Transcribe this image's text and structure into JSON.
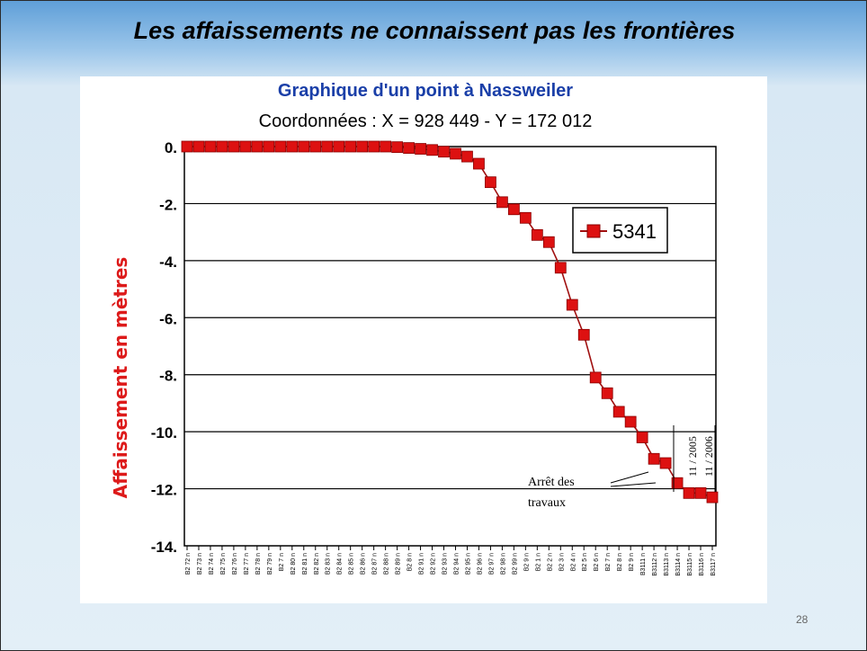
{
  "slide": {
    "title": "Les affaissements ne connaissent pas les frontières",
    "page_number": "28"
  },
  "chart_data": {
    "type": "line",
    "title": "Graphique d'un point à Nassweiler",
    "subtitle": "Coordonnées : X = 928 449 - Y = 172 012",
    "xlabel": "",
    "ylabel": "Affaissement en mètres",
    "ylim": [
      -14,
      0
    ],
    "yticks": [
      0,
      -2,
      -4,
      -6,
      -8,
      -10,
      -12,
      -14
    ],
    "ytick_labels": [
      "0.",
      "-2.",
      "-4.",
      "-6.",
      "-8.",
      "-10.",
      "-12.",
      "-14."
    ],
    "grid": true,
    "legend": "top-right",
    "categories": [
      "B2 72 n",
      "B2 73 n",
      "B2 74 n",
      "B2 75 n",
      "B2 76 n",
      "B2 77 n",
      "B2 78 n",
      "B2 79 n",
      "B2 7 n",
      "B2 80 n",
      "B2 81 n",
      "B2 82 n",
      "B2 83 n",
      "B2 84 n",
      "B2 85 n",
      "B2 86 n",
      "B2 87 n",
      "B2 88 n",
      "B2 89 n",
      "B2 8 n",
      "B2 91 n",
      "B2 92 n",
      "B2 93 n",
      "B2 94 n",
      "B2 95 n",
      "B2 96 n",
      "B2 97 n",
      "B2 98 n",
      "B2 99 n",
      "B2 9 n",
      "B2 1 n",
      "B2 2 n",
      "B2 3 n",
      "B2 4 n",
      "B2 5 n",
      "B2 6 n",
      "B2 7 n",
      "B2 8 n",
      "B2 9 n",
      "B3111 n",
      "B3112 n",
      "B3113 n",
      "B3114 n",
      "B3115 n",
      "B3116 n",
      "B3117 n"
    ],
    "series": [
      {
        "name": "5341",
        "color": "#dd1111",
        "values": [
          0,
          0,
          0,
          0,
          0,
          0,
          0,
          0,
          0,
          0,
          0,
          0,
          0,
          0,
          0,
          0,
          0,
          0,
          -0.02,
          -0.05,
          -0.08,
          -0.12,
          -0.18,
          -0.25,
          -0.35,
          -0.6,
          -1.25,
          -1.95,
          -2.2,
          -2.5,
          -3.1,
          -3.35,
          -4.25,
          -5.55,
          -6.6,
          -8.1,
          -8.65,
          -9.3,
          -9.65,
          -10.2,
          -10.95,
          -11.1,
          -11.8,
          -12.15,
          -12.15,
          -12.3
        ]
      }
    ],
    "annotations": {
      "stop_text_line1": "Arrêt des",
      "stop_text_line2": "travaux",
      "date_1": "11 / 2005",
      "date_2": "11 / 2006"
    }
  }
}
